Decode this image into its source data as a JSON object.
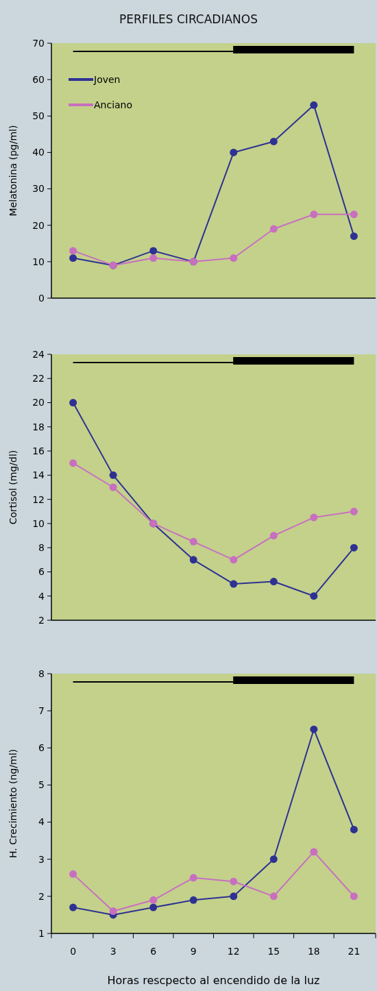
{
  "chart_data": [
    {
      "type": "line",
      "title": "PERFILES CIRCADIANOS",
      "ylabel": "Melatonina (pg/ml)",
      "categories": [
        "0",
        "3",
        "6",
        "9",
        "12",
        "15",
        "18",
        "21"
      ],
      "ylim": [
        0,
        70
      ],
      "yticks": [
        0,
        10,
        20,
        30,
        40,
        50,
        60,
        70
      ],
      "tick_labels": "y",
      "marker": "circle",
      "legend": "top left",
      "series": [
        {
          "name": "Joven",
          "color": "#2e3192",
          "values": [
            11,
            9,
            13,
            10,
            40,
            43,
            53,
            17
          ]
        },
        {
          "name": "Anciano",
          "color": "#c86fc0",
          "values": [
            13,
            9,
            11,
            10,
            11,
            19,
            23,
            23
          ]
        }
      ]
    },
    {
      "type": "line",
      "ylabel": "Cortisol (mg/dl)",
      "categories": [
        "0",
        "3",
        "6",
        "9",
        "12",
        "15",
        "18",
        "21"
      ],
      "ylim": [
        2,
        24
      ],
      "yticks": [
        2,
        4,
        6,
        8,
        10,
        12,
        14,
        16,
        18,
        20,
        22,
        24
      ],
      "tick_labels": "y",
      "marker": "circle",
      "series": [
        {
          "color": "#2e3192",
          "values": [
            20,
            14,
            10,
            7,
            5,
            5.2,
            4,
            8
          ]
        },
        {
          "color": "#c86fc0",
          "values": [
            15,
            13,
            10,
            8.5,
            7,
            9,
            10.5,
            11
          ]
        }
      ]
    },
    {
      "type": "line",
      "ylabel": "H. Crecimiento (ng/ml)",
      "xlabel": "Horas rescpecto al encendido de la luz",
      "categories": [
        "0",
        "3",
        "6",
        "9",
        "12",
        "15",
        "18",
        "21"
      ],
      "ylim": [
        1,
        8
      ],
      "yticks": [
        1,
        2,
        3,
        4,
        5,
        6,
        7,
        8
      ],
      "marker": "circle",
      "series": [
        {
          "color": "#2e3192",
          "values": [
            1.7,
            1.5,
            1.7,
            1.9,
            2.0,
            3.0,
            6.5,
            3.8
          ]
        },
        {
          "color": "#c86fc0",
          "values": [
            2.6,
            1.6,
            1.9,
            2.5,
            2.4,
            2.0,
            3.2,
            2.0
          ]
        }
      ]
    }
  ]
}
